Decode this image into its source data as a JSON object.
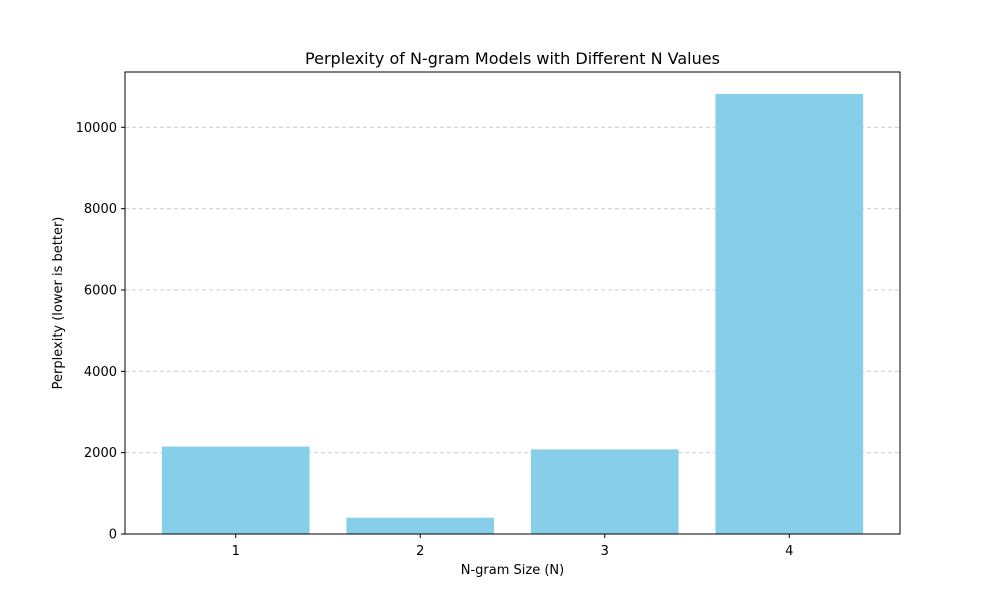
{
  "chart_data": {
    "type": "bar",
    "title": "Perplexity of N-gram Models with Different N Values",
    "xlabel": "N-gram Size (N)",
    "ylabel": "Perplexity (lower is better)",
    "categories": [
      "1",
      "2",
      "3",
      "4"
    ],
    "values": [
      2150,
      400,
      2080,
      10820
    ],
    "ylim": [
      0,
      11360
    ],
    "yticks": [
      0,
      2000,
      4000,
      6000,
      8000,
      10000
    ],
    "ytick_labels": [
      "0",
      "2000",
      "4000",
      "6000",
      "8000",
      "10000"
    ],
    "grid": "y-dashed",
    "bar_color": "#87ceeb",
    "grid_color": "#c8c8c8"
  }
}
